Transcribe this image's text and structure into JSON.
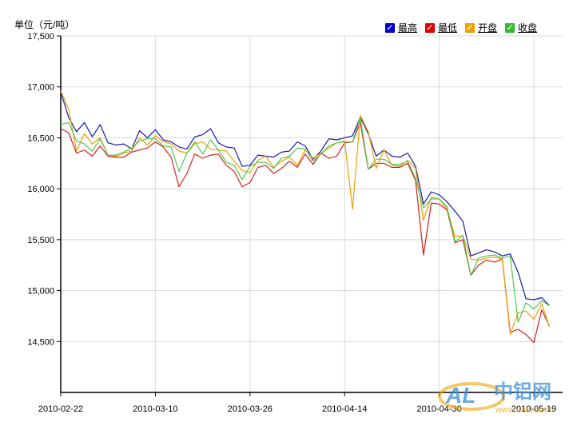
{
  "chart_data": {
    "type": "line",
    "ylabel": "单位（元/吨）",
    "ylim": [
      14000,
      17500
    ],
    "yticks": [
      "14,500",
      "15,000",
      "15,500",
      "16,000",
      "16,500",
      "17,000",
      "17,500"
    ],
    "ytick_values": [
      14500,
      15000,
      15500,
      16000,
      16500,
      17000,
      17500
    ],
    "xticks": [
      "2010-02-22",
      "2010-03-10",
      "2010-03-26",
      "2010-04-14",
      "2010-04-30",
      "2010-05-19"
    ],
    "xtick_index": [
      0,
      12,
      24,
      36,
      48,
      60
    ],
    "grid": true,
    "legend_position": "top-right",
    "series": [
      {
        "name": "最高",
        "color": "#1a1aa8",
        "check_color": "#0000cc",
        "values": [
          16950,
          16700,
          16560,
          16650,
          16510,
          16630,
          16450,
          16430,
          16440,
          16390,
          16570,
          16500,
          16580,
          16480,
          16460,
          16410,
          16390,
          16510,
          16530,
          16590,
          16450,
          16410,
          16400,
          16220,
          16230,
          16330,
          16320,
          16310,
          16360,
          16370,
          16460,
          16420,
          16290,
          16370,
          16490,
          16480,
          16500,
          16520,
          16700,
          16540,
          16320,
          16380,
          16320,
          16310,
          16350,
          16220,
          15850,
          15970,
          15940,
          15870,
          15780,
          15680,
          15340,
          15370,
          15400,
          15380,
          15340,
          15360,
          15180,
          14920,
          14910,
          14930,
          14850
        ]
      },
      {
        "name": "最低",
        "color": "#d42020",
        "check_color": "#dd0000",
        "values": [
          16590,
          16550,
          16350,
          16380,
          16320,
          16420,
          16320,
          16310,
          16310,
          16360,
          16380,
          16400,
          16460,
          16410,
          16310,
          16020,
          16150,
          16340,
          16300,
          16330,
          16340,
          16230,
          16170,
          16020,
          16060,
          16210,
          16230,
          16150,
          16200,
          16270,
          16210,
          16340,
          16240,
          16350,
          16300,
          16320,
          16450,
          16460,
          16650,
          16190,
          16250,
          16250,
          16210,
          16210,
          16250,
          16080,
          15350,
          15860,
          15850,
          15790,
          15470,
          15500,
          15150,
          15250,
          15300,
          15280,
          15310,
          14590,
          14620,
          14570,
          14490,
          14810,
          14650
        ]
      },
      {
        "name": "开盘",
        "color": "#f0a000",
        "check_color": "#f0a000",
        "values": [
          16960,
          16780,
          16370,
          16540,
          16440,
          16500,
          16330,
          16320,
          16350,
          16370,
          16500,
          16430,
          16520,
          16460,
          16440,
          16370,
          16350,
          16440,
          16460,
          16390,
          16380,
          16370,
          16270,
          16180,
          16160,
          16280,
          16320,
          16210,
          16270,
          16310,
          16230,
          16380,
          16300,
          16350,
          16400,
          16450,
          16470,
          15800,
          16720,
          16560,
          16200,
          16380,
          16230,
          16220,
          16280,
          16200,
          15690,
          15920,
          15900,
          15800,
          15530,
          15540,
          15310,
          15300,
          15320,
          15330,
          15310,
          14570,
          14780,
          14800,
          14720,
          14870,
          14640
        ]
      },
      {
        "name": "收盘",
        "color": "#50c850",
        "check_color": "#33bb33",
        "values": [
          16630,
          16650,
          16470,
          16440,
          16370,
          16490,
          16330,
          16330,
          16360,
          16400,
          16470,
          16490,
          16490,
          16420,
          16410,
          16170,
          16350,
          16460,
          16340,
          16480,
          16380,
          16260,
          16230,
          16090,
          16220,
          16260,
          16260,
          16200,
          16300,
          16320,
          16400,
          16390,
          16270,
          16340,
          16420,
          16450,
          16460,
          16460,
          16700,
          16190,
          16290,
          16290,
          16240,
          16240,
          16270,
          16100,
          15810,
          15900,
          15900,
          15820,
          15480,
          15540,
          15150,
          15320,
          15340,
          15350,
          15320,
          15340,
          14690,
          14880,
          14820,
          14900,
          14850
        ]
      }
    ]
  },
  "watermark": {
    "logo_text": "AL",
    "brand_text": "中铝网",
    "url_text": "www.cnal.com"
  }
}
